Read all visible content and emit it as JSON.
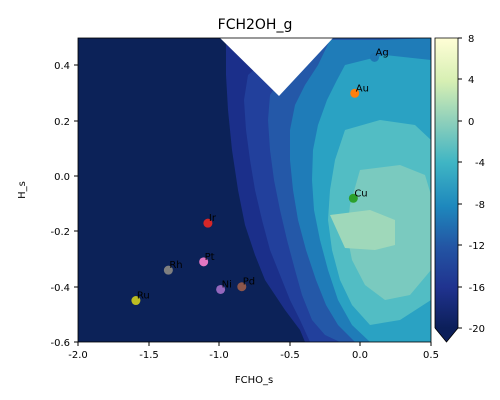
{
  "chart_data": {
    "type": "contour",
    "title": "FCH2OH_g",
    "xlabel": "FCHO_s",
    "ylabel": "H_s",
    "xlim": [
      -2.0,
      0.5
    ],
    "ylim": [
      -0.6,
      0.5
    ],
    "x_ticks": [
      "-2.0",
      "-1.5",
      "-1.0",
      "-0.5",
      "0.0",
      "0.5"
    ],
    "y_ticks": [
      "-0.6",
      "-0.4",
      "-0.2",
      "0.0",
      "0.2",
      "0.4"
    ],
    "colorbar": {
      "min": -20,
      "max": 8,
      "ticks": [
        "-20",
        "-16",
        "-12",
        "-8",
        "-4",
        "0",
        "4",
        "8"
      ],
      "colormap": "YlGnBu_r",
      "extend": "min"
    },
    "points": [
      {
        "label": "Ag",
        "x": 0.1,
        "y": 0.43,
        "color": "#1f77b4"
      },
      {
        "label": "Au",
        "x": -0.04,
        "y": 0.3,
        "color": "#ff7f0e"
      },
      {
        "label": "Cu",
        "x": -0.05,
        "y": -0.08,
        "color": "#2ca02c"
      },
      {
        "label": "Ir",
        "x": -1.08,
        "y": -0.17,
        "color": "#d62728"
      },
      {
        "label": "Pt",
        "x": -1.11,
        "y": -0.31,
        "color": "#e377c2"
      },
      {
        "label": "Rh",
        "x": -1.36,
        "y": -0.34,
        "color": "#7f7f7f"
      },
      {
        "label": "Ni",
        "x": -0.99,
        "y": -0.41,
        "color": "#9467bd"
      },
      {
        "label": "Pd",
        "x": -0.84,
        "y": -0.4,
        "color": "#8c564b"
      },
      {
        "label": "Ru",
        "x": -1.59,
        "y": -0.45,
        "color": "#bcbd22"
      }
    ]
  }
}
